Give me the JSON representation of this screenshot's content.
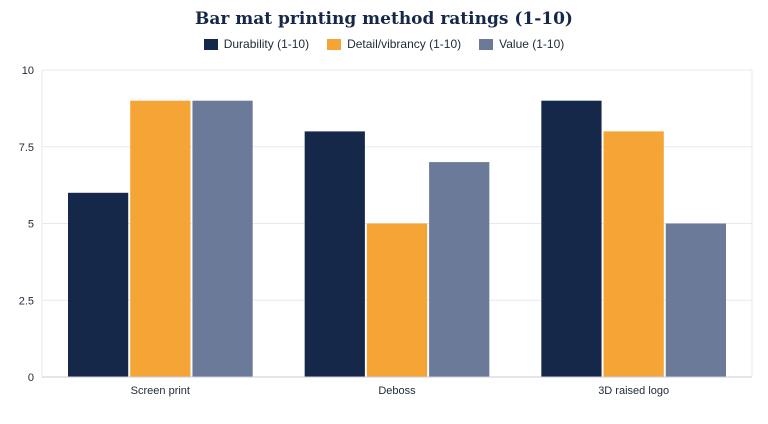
{
  "chart_data": {
    "type": "bar",
    "title": "Bar mat printing method ratings (1-10)",
    "xlabel": "",
    "ylabel": "",
    "categories": [
      "Screen print",
      "Deboss",
      "3D raised logo"
    ],
    "series": [
      {
        "name": "Durability (1-10)",
        "values": [
          6,
          8,
          9
        ],
        "color": "#16284a"
      },
      {
        "name": "Detail/vibrancy (1-10)",
        "values": [
          9,
          5,
          8
        ],
        "color": "#f4a535"
      },
      {
        "name": "Value (1-10)",
        "values": [
          9,
          7,
          5
        ],
        "color": "#6b7a99"
      }
    ],
    "ylim": [
      0,
      10
    ],
    "yticks": [
      0,
      2.5,
      5,
      7.5,
      10
    ],
    "ytick_labels": [
      "0",
      "2.5",
      "5",
      "7.5",
      "10"
    ],
    "grid": true,
    "legend_position": "top"
  }
}
